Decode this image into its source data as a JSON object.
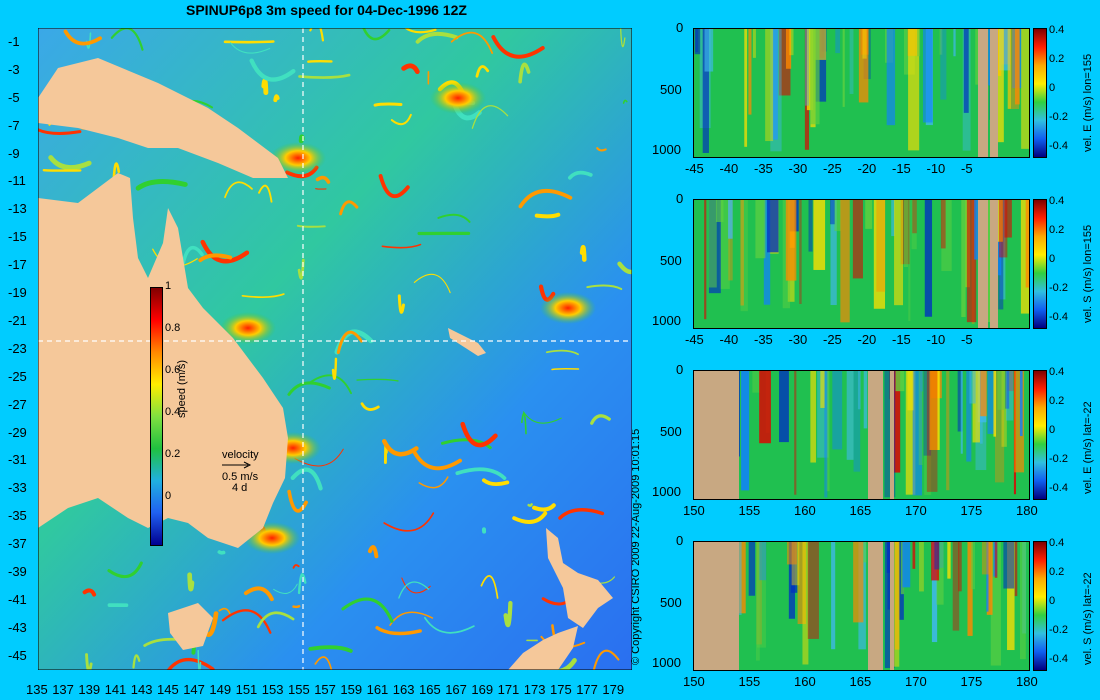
{
  "title": "SPINUP6p8 3m speed for 04-Dec-1996 12Z",
  "copyright": "© Copyright CSIRO 2009   22-Aug-2009 10:01:15",
  "colors": {
    "land": "#f5c89a",
    "section_land": "#c8a882",
    "background": "#00ccff"
  },
  "map": {
    "x_ticks": [
      "135",
      "137",
      "139",
      "141",
      "143",
      "145",
      "147",
      "149",
      "151",
      "153",
      "155",
      "157",
      "159",
      "161",
      "163",
      "165",
      "167",
      "169",
      "171",
      "173",
      "175",
      "177",
      "179"
    ],
    "y_ticks": [
      "-1",
      "-3",
      "-5",
      "-7",
      "-9",
      "-11",
      "-13",
      "-15",
      "-17",
      "-19",
      "-21",
      "-23",
      "-25",
      "-27",
      "-29",
      "-31",
      "-33",
      "-35",
      "-37",
      "-39",
      "-41",
      "-43",
      "-45"
    ],
    "crosshair": {
      "lon": 155,
      "lat": -22
    },
    "colorbar": {
      "label": "speed (m/s)",
      "ticks": [
        "1",
        "0.8",
        "0.6",
        "0.4",
        "0.2",
        "0"
      ]
    },
    "velocity_key": {
      "title": "velocity",
      "speed": "0.5 m/s",
      "time": "4 d"
    }
  },
  "chart_data": [
    {
      "type": "heatmap",
      "title": "SPINUP6p8 3m speed for 04-Dec-1996 12Z",
      "x_range": [
        135,
        180
      ],
      "y_range": [
        -45,
        0
      ],
      "colorbar_label": "speed (m/s)",
      "colorbar_range": [
        0,
        1
      ]
    },
    {
      "type": "heatmap",
      "label": "vel. E (m/s) lon=155",
      "x_ticks": [
        "-45",
        "-40",
        "-35",
        "-30",
        "-25",
        "-20",
        "-15",
        "-10",
        "-5"
      ],
      "y_ticks": [
        "0",
        "500",
        "1000"
      ],
      "cbar_ticks": [
        "0.4",
        "0.2",
        "0",
        "-0.2",
        "-0.4"
      ],
      "x_range": [
        -45,
        0
      ],
      "y_range": [
        0,
        1050
      ],
      "cbar_range": [
        -0.4,
        0.4
      ]
    },
    {
      "type": "heatmap",
      "label": "vel. S (m/s) lon=155",
      "x_ticks": [
        "-45",
        "-40",
        "-35",
        "-30",
        "-25",
        "-20",
        "-15",
        "-10",
        "-5"
      ],
      "y_ticks": [
        "0",
        "500",
        "1000"
      ],
      "cbar_ticks": [
        "0.4",
        "0.2",
        "0",
        "-0.2",
        "-0.4"
      ],
      "x_range": [
        -45,
        0
      ],
      "y_range": [
        0,
        1050
      ],
      "cbar_range": [
        -0.4,
        0.4
      ]
    },
    {
      "type": "heatmap",
      "label": "vel. E (m/s) lat=-22",
      "x_ticks": [
        "150",
        "155",
        "160",
        "165",
        "170",
        "175",
        "180"
      ],
      "y_ticks": [
        "0",
        "500",
        "1000"
      ],
      "cbar_ticks": [
        "0.4",
        "0.2",
        "0",
        "-0.2",
        "-0.4"
      ],
      "x_range": [
        150,
        180
      ],
      "y_range": [
        0,
        1050
      ],
      "cbar_range": [
        -0.4,
        0.4
      ]
    },
    {
      "type": "heatmap",
      "label": "vel. S (m/s) lat=-22",
      "x_ticks": [
        "150",
        "155",
        "160",
        "165",
        "170",
        "175",
        "180"
      ],
      "y_ticks": [
        "0",
        "500",
        "1000"
      ],
      "cbar_ticks": [
        "0.4",
        "0.2",
        "0",
        "-0.2",
        "-0.4"
      ],
      "x_range": [
        150,
        180
      ],
      "y_range": [
        0,
        1050
      ],
      "cbar_range": [
        -0.4,
        0.4
      ]
    }
  ]
}
